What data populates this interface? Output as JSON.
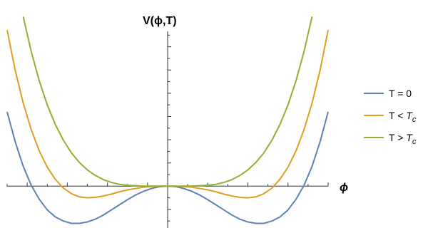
{
  "chart_data": {
    "type": "line",
    "title": "",
    "ylabel": "V(ϕ,T)",
    "xlabel": "ϕ",
    "xlim": [
      -2.0,
      2.0
    ],
    "ylim": [
      -0.9,
      3.7
    ],
    "grid": false,
    "legend_position": "right",
    "x_tick_values": [
      -2.0,
      -1.75,
      -1.5,
      -1.25,
      -1.0,
      -0.75,
      -0.5,
      -0.25,
      0.25,
      0.5,
      0.75,
      1.0,
      1.25,
      1.5,
      1.75,
      2.0
    ],
    "y_tick_values": [
      -0.75,
      -0.5,
      -0.25,
      0.25,
      0.5,
      0.75,
      1.0,
      1.25,
      1.5,
      1.75,
      2.0,
      2.25,
      2.5,
      2.75,
      3.0,
      3.25,
      3.5
    ],
    "series": [
      {
        "name": "T = 0",
        "color": "#5e81b5",
        "x": [
          -2.0,
          -1.9,
          -1.8,
          -1.7,
          -1.6,
          -1.5,
          -1.4,
          -1.3,
          -1.2,
          -1.1,
          -1.0,
          -0.9,
          -0.8,
          -0.7,
          -0.6,
          -0.5,
          -0.4,
          -0.3,
          -0.2,
          -0.1,
          0.0,
          0.1,
          0.2,
          0.3,
          0.4,
          0.5,
          0.6,
          0.7,
          0.8,
          0.9,
          1.0,
          1.1,
          1.2,
          1.3,
          1.4,
          1.5,
          1.6,
          1.7,
          1.8,
          1.9,
          2.0
        ],
        "y": [
          1.6,
          0.96,
          0.43,
          0.02,
          -0.28,
          -0.51,
          -0.66,
          -0.75,
          -0.8,
          -0.8,
          -0.77,
          -0.71,
          -0.62,
          -0.51,
          -0.4,
          -0.29,
          -0.19,
          -0.11,
          -0.05,
          -0.01,
          0.0,
          -0.01,
          -0.05,
          -0.11,
          -0.19,
          -0.29,
          -0.4,
          -0.51,
          -0.62,
          -0.71,
          -0.77,
          -0.8,
          -0.8,
          -0.75,
          -0.66,
          -0.51,
          -0.28,
          0.02,
          0.43,
          0.96,
          1.6
        ]
      },
      {
        "name": "T < Tc",
        "name_base": "T < ",
        "name_sub": "c",
        "color": "#e19c24",
        "x": [
          -2.0,
          -1.9,
          -1.8,
          -1.7,
          -1.6,
          -1.5,
          -1.4,
          -1.3,
          -1.2,
          -1.1,
          -1.0,
          -0.9,
          -0.8,
          -0.7,
          -0.6,
          -0.5,
          -0.4,
          -0.3,
          -0.2,
          -0.1,
          0.0,
          0.1,
          0.2,
          0.3,
          0.4,
          0.5,
          0.6,
          0.7,
          0.8,
          0.9,
          1.0,
          1.1,
          1.2,
          1.3,
          1.4,
          1.5,
          1.6,
          1.7,
          1.8,
          1.9,
          2.0
        ],
        "y": [
          3.36,
          2.5,
          1.79,
          1.22,
          0.76,
          0.41,
          0.15,
          -0.04,
          -0.16,
          -0.23,
          -0.25,
          -0.24,
          -0.21,
          -0.17,
          -0.12,
          -0.08,
          -0.05,
          -0.02,
          -0.01,
          0.0,
          0.0,
          0.0,
          -0.01,
          -0.02,
          -0.05,
          -0.08,
          -0.12,
          -0.17,
          -0.21,
          -0.24,
          -0.25,
          -0.23,
          -0.16,
          -0.04,
          0.15,
          0.41,
          0.76,
          1.22,
          1.79,
          2.5,
          3.36
        ]
      },
      {
        "name": "T > Tc",
        "name_base": "T > ",
        "name_sub": "c",
        "color": "#8fb032",
        "x": [
          -1.8,
          -1.7,
          -1.6,
          -1.5,
          -1.4,
          -1.3,
          -1.2,
          -1.1,
          -1.0,
          -0.9,
          -0.8,
          -0.7,
          -0.6,
          -0.5,
          -0.4,
          -0.3,
          -0.2,
          -0.1,
          0.0,
          0.1,
          0.2,
          0.3,
          0.4,
          0.5,
          0.6,
          0.7,
          0.8,
          0.9,
          1.0,
          1.1,
          1.2,
          1.3,
          1.4,
          1.5,
          1.6,
          1.7,
          1.8
        ],
        "y": [
          3.65,
          2.9,
          2.27,
          1.75,
          1.33,
          0.99,
          0.72,
          0.51,
          0.35,
          0.23,
          0.14,
          0.08,
          0.04,
          0.02,
          0.01,
          0.0,
          0.0,
          0.0,
          0.0,
          0.0,
          0.0,
          0.0,
          0.01,
          0.02,
          0.04,
          0.08,
          0.14,
          0.23,
          0.35,
          0.51,
          0.72,
          0.99,
          1.33,
          1.75,
          2.27,
          2.9,
          3.65
        ]
      }
    ]
  }
}
